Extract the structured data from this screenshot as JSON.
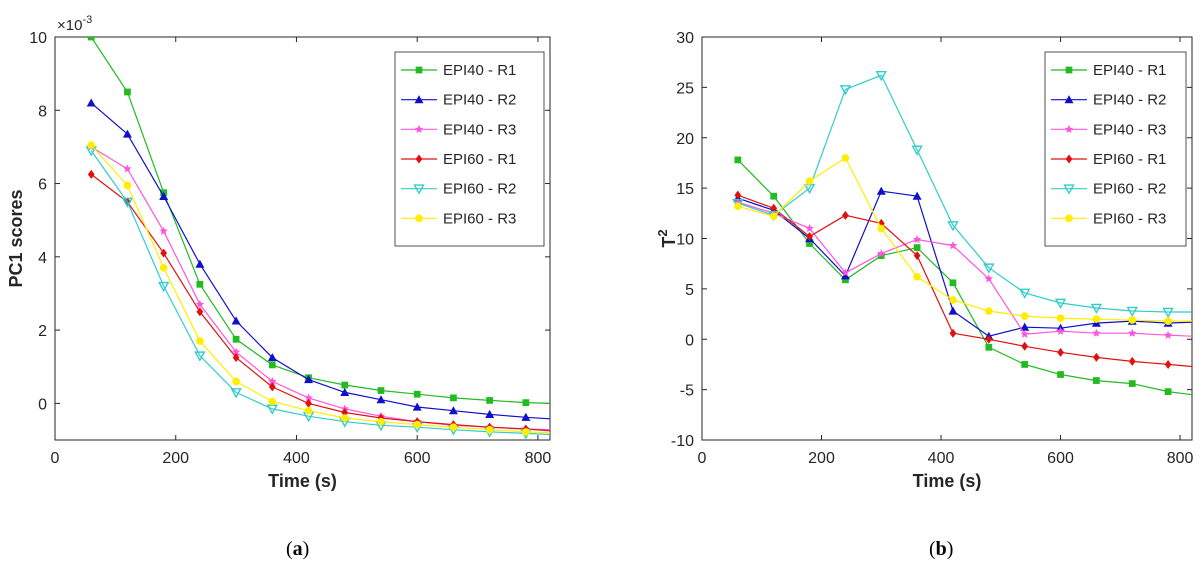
{
  "chart_data": [
    {
      "type": "line",
      "panel_label": "(a)",
      "panel_letter": "a",
      "xlabel": "Time (s)",
      "ylabel": "PC1 scores",
      "y_exponent_label": "×10",
      "y_exponent_power": "-3",
      "xlim": [
        0,
        820
      ],
      "ylim": [
        -1,
        10
      ],
      "xticks": [
        0,
        200,
        400,
        600,
        800
      ],
      "yticks": [
        0,
        2,
        4,
        6,
        8,
        10
      ],
      "grid": false,
      "legend_position": "top-right",
      "x": [
        60,
        120,
        180,
        240,
        300,
        360,
        420,
        480,
        540,
        600,
        660,
        720,
        780,
        820
      ],
      "series": [
        {
          "name": "EPI40 - R1",
          "color": "#22bb22",
          "marker": "square",
          "values": [
            10.0,
            8.5,
            5.75,
            3.25,
            1.75,
            1.05,
            0.7,
            0.5,
            0.35,
            0.25,
            0.15,
            0.08,
            0.02,
            0.0
          ]
        },
        {
          "name": "EPI40 - R2",
          "color": "#1010cc",
          "marker": "triangle-up",
          "values": [
            8.2,
            7.35,
            5.65,
            3.8,
            2.25,
            1.25,
            0.65,
            0.3,
            0.1,
            -0.1,
            -0.2,
            -0.3,
            -0.38,
            -0.42
          ]
        },
        {
          "name": "EPI40 - R3",
          "color": "#ff55dd",
          "marker": "star",
          "values": [
            7.0,
            6.4,
            4.7,
            2.7,
            1.4,
            0.6,
            0.15,
            -0.15,
            -0.35,
            -0.5,
            -0.6,
            -0.65,
            -0.7,
            -0.72
          ]
        },
        {
          "name": "EPI60 - R1",
          "color": "#e01010",
          "marker": "diamond",
          "values": [
            6.25,
            5.5,
            4.1,
            2.5,
            1.25,
            0.45,
            0.0,
            -0.25,
            -0.4,
            -0.5,
            -0.58,
            -0.65,
            -0.7,
            -0.75
          ]
        },
        {
          "name": "EPI60 - R2",
          "color": "#33cccc",
          "marker": "triangle-down",
          "values": [
            6.9,
            5.5,
            3.2,
            1.3,
            0.3,
            -0.15,
            -0.35,
            -0.5,
            -0.6,
            -0.65,
            -0.72,
            -0.78,
            -0.82,
            -0.85
          ]
        },
        {
          "name": "EPI60 - R3",
          "color": "#ffee00",
          "marker": "circle",
          "values": [
            7.05,
            5.95,
            3.7,
            1.7,
            0.6,
            0.05,
            -0.2,
            -0.4,
            -0.5,
            -0.58,
            -0.65,
            -0.72,
            -0.78,
            -0.8
          ]
        }
      ]
    },
    {
      "type": "line",
      "panel_label": "(b)",
      "panel_letter": "b",
      "xlabel": "Time (s)",
      "ylabel": "T",
      "ylabel_superscript": "2",
      "xlim": [
        0,
        820
      ],
      "ylim": [
        -10,
        30
      ],
      "xticks": [
        0,
        200,
        400,
        600,
        800
      ],
      "yticks": [
        -10,
        -5,
        0,
        5,
        10,
        15,
        20,
        25,
        30
      ],
      "grid": false,
      "legend_position": "top-right",
      "x": [
        60,
        120,
        180,
        240,
        300,
        360,
        420,
        480,
        540,
        600,
        660,
        720,
        780,
        820
      ],
      "series": [
        {
          "name": "EPI40 - R1",
          "color": "#22bb22",
          "marker": "square",
          "values": [
            17.8,
            14.2,
            9.5,
            5.9,
            8.3,
            9.1,
            5.6,
            -0.8,
            -2.5,
            -3.5,
            -4.1,
            -4.4,
            -5.2,
            -5.5
          ]
        },
        {
          "name": "EPI40 - R2",
          "color": "#1010cc",
          "marker": "triangle-up",
          "values": [
            14.0,
            12.8,
            10.0,
            6.3,
            14.7,
            14.2,
            2.8,
            0.3,
            1.2,
            1.1,
            1.6,
            1.8,
            1.6,
            1.7
          ]
        },
        {
          "name": "EPI40 - R3",
          "color": "#ff55dd",
          "marker": "star",
          "values": [
            13.6,
            12.5,
            11.0,
            6.6,
            8.5,
            9.9,
            9.3,
            6.0,
            0.5,
            0.8,
            0.6,
            0.6,
            0.4,
            0.3
          ]
        },
        {
          "name": "EPI60 - R1",
          "color": "#e01010",
          "marker": "diamond",
          "values": [
            14.3,
            13.0,
            10.2,
            12.3,
            11.5,
            8.3,
            0.6,
            0.0,
            -0.7,
            -1.3,
            -1.8,
            -2.2,
            -2.5,
            -2.7
          ]
        },
        {
          "name": "EPI60 - R2",
          "color": "#33cccc",
          "marker": "triangle-down",
          "values": [
            13.5,
            12.3,
            15.0,
            24.8,
            26.2,
            18.8,
            11.3,
            7.1,
            4.6,
            3.6,
            3.1,
            2.8,
            2.7,
            2.7
          ]
        },
        {
          "name": "EPI60 - R3",
          "color": "#ffee00",
          "marker": "circle",
          "values": [
            13.2,
            12.2,
            15.7,
            18.0,
            11.0,
            6.2,
            3.9,
            2.8,
            2.3,
            2.1,
            2.0,
            1.9,
            1.8,
            1.8
          ]
        }
      ]
    }
  ]
}
